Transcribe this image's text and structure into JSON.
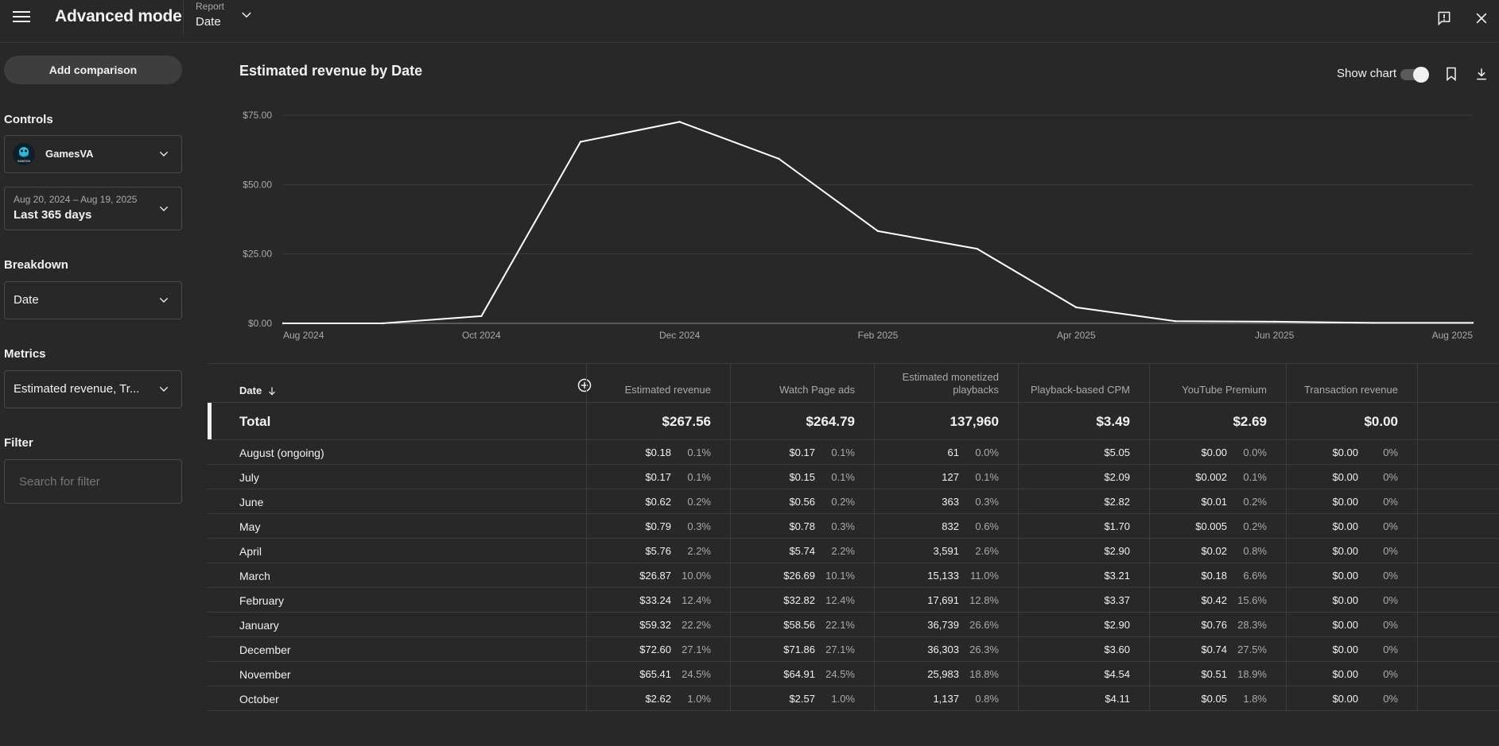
{
  "header": {
    "title": "Advanced mode",
    "report_label": "Report",
    "report_value": "Date"
  },
  "sidebar": {
    "add_comparison": "Add comparison",
    "controls_label": "Controls",
    "channel_name": "GamesVA",
    "channel_avatar_text": "GAMESVA",
    "date_range": "Aug 20, 2024 – Aug 19, 2025",
    "date_preset": "Last 365 days",
    "breakdown_label": "Breakdown",
    "breakdown_value": "Date",
    "metrics_label": "Metrics",
    "metrics_value": "Estimated revenue, Tr...",
    "filter_label": "Filter",
    "filter_placeholder": "Search for filter"
  },
  "chart_section": {
    "title": "Estimated revenue by Date",
    "show_chart_label": "Show chart",
    "show_chart_on": true
  },
  "chart_data": {
    "type": "line",
    "title": "Estimated revenue by Date",
    "x_ticks": [
      "Aug 2024",
      "Oct 2024",
      "Dec 2024",
      "Feb 2025",
      "Apr 2025",
      "Jun 2025",
      "Aug 2025"
    ],
    "y_ticks": [
      "$75.00",
      "$50.00",
      "$25.00",
      "$0.00"
    ],
    "ylim": [
      0,
      75
    ],
    "grid": true,
    "series": [
      {
        "x": [
          "Aug 2024",
          "Sep 2024",
          "Oct 2024",
          "Nov 2024",
          "Dec 2024",
          "Jan 2025",
          "Feb 2025",
          "Mar 2025",
          "Apr 2025",
          "May 2025",
          "Jun 2025",
          "Jul 2025",
          "Aug 2025"
        ],
        "values": [
          0,
          0,
          2.62,
          65.41,
          72.6,
          59.32,
          33.24,
          26.87,
          5.76,
          0.79,
          0.62,
          0.17,
          0.18
        ]
      }
    ],
    "color": "#ffffff"
  },
  "table": {
    "date_header": "Date",
    "columns": [
      {
        "header": "Estimated revenue",
        "total": "$267.56"
      },
      {
        "header": "Watch Page ads",
        "total": "$264.79"
      },
      {
        "header": "Estimated monetized playbacks",
        "total": "137,960"
      },
      {
        "header": "Playback-based CPM",
        "total": "$3.49"
      },
      {
        "header": "YouTube Premium",
        "total": "$2.69"
      },
      {
        "header": "Transaction revenue",
        "total": "$0.00"
      }
    ],
    "total_label": "Total",
    "rows": [
      {
        "label": "August (ongoing)",
        "rev": "$0.18",
        "rev_pct": "0.1%",
        "wpa": "$0.17",
        "wpa_pct": "0.1%",
        "mp": "61",
        "mp_pct": "0.0%",
        "cpm": "$5.05",
        "yp": "$0.00",
        "yp_pct": "0.0%",
        "tr": "$0.00",
        "tr_pct": "0%"
      },
      {
        "label": "July",
        "rev": "$0.17",
        "rev_pct": "0.1%",
        "wpa": "$0.15",
        "wpa_pct": "0.1%",
        "mp": "127",
        "mp_pct": "0.1%",
        "cpm": "$2.09",
        "yp": "$0.002",
        "yp_pct": "0.1%",
        "tr": "$0.00",
        "tr_pct": "0%"
      },
      {
        "label": "June",
        "rev": "$0.62",
        "rev_pct": "0.2%",
        "wpa": "$0.56",
        "wpa_pct": "0.2%",
        "mp": "363",
        "mp_pct": "0.3%",
        "cpm": "$2.82",
        "yp": "$0.01",
        "yp_pct": "0.2%",
        "tr": "$0.00",
        "tr_pct": "0%"
      },
      {
        "label": "May",
        "rev": "$0.79",
        "rev_pct": "0.3%",
        "wpa": "$0.78",
        "wpa_pct": "0.3%",
        "mp": "832",
        "mp_pct": "0.6%",
        "cpm": "$1.70",
        "yp": "$0.005",
        "yp_pct": "0.2%",
        "tr": "$0.00",
        "tr_pct": "0%"
      },
      {
        "label": "April",
        "rev": "$5.76",
        "rev_pct": "2.2%",
        "wpa": "$5.74",
        "wpa_pct": "2.2%",
        "mp": "3,591",
        "mp_pct": "2.6%",
        "cpm": "$2.90",
        "yp": "$0.02",
        "yp_pct": "0.8%",
        "tr": "$0.00",
        "tr_pct": "0%"
      },
      {
        "label": "March",
        "rev": "$26.87",
        "rev_pct": "10.0%",
        "wpa": "$26.69",
        "wpa_pct": "10.1%",
        "mp": "15,133",
        "mp_pct": "11.0%",
        "cpm": "$3.21",
        "yp": "$0.18",
        "yp_pct": "6.6%",
        "tr": "$0.00",
        "tr_pct": "0%"
      },
      {
        "label": "February",
        "rev": "$33.24",
        "rev_pct": "12.4%",
        "wpa": "$32.82",
        "wpa_pct": "12.4%",
        "mp": "17,691",
        "mp_pct": "12.8%",
        "cpm": "$3.37",
        "yp": "$0.42",
        "yp_pct": "15.6%",
        "tr": "$0.00",
        "tr_pct": "0%"
      },
      {
        "label": "January",
        "rev": "$59.32",
        "rev_pct": "22.2%",
        "wpa": "$58.56",
        "wpa_pct": "22.1%",
        "mp": "36,739",
        "mp_pct": "26.6%",
        "cpm": "$2.90",
        "yp": "$0.76",
        "yp_pct": "28.3%",
        "tr": "$0.00",
        "tr_pct": "0%"
      },
      {
        "label": "December",
        "rev": "$72.60",
        "rev_pct": "27.1%",
        "wpa": "$71.86",
        "wpa_pct": "27.1%",
        "mp": "36,303",
        "mp_pct": "26.3%",
        "cpm": "$3.60",
        "yp": "$0.74",
        "yp_pct": "27.5%",
        "tr": "$0.00",
        "tr_pct": "0%"
      },
      {
        "label": "November",
        "rev": "$65.41",
        "rev_pct": "24.5%",
        "wpa": "$64.91",
        "wpa_pct": "24.5%",
        "mp": "25,983",
        "mp_pct": "18.8%",
        "cpm": "$4.54",
        "yp": "$0.51",
        "yp_pct": "18.9%",
        "tr": "$0.00",
        "tr_pct": "0%"
      },
      {
        "label": "October",
        "rev": "$2.62",
        "rev_pct": "1.0%",
        "wpa": "$2.57",
        "wpa_pct": "1.0%",
        "mp": "1,137",
        "mp_pct": "0.8%",
        "cpm": "$4.11",
        "yp": "$0.05",
        "yp_pct": "1.8%",
        "tr": "$0.00",
        "tr_pct": "0%"
      }
    ]
  },
  "icons": {
    "menu": "menu-icon",
    "report_dropdown": "chevron-down-icon",
    "feedback": "feedback-icon",
    "close": "close-icon",
    "bookmark": "bookmark-icon",
    "download": "download-icon",
    "sort": "arrow-down-icon",
    "add_column": "add-circle-icon"
  }
}
